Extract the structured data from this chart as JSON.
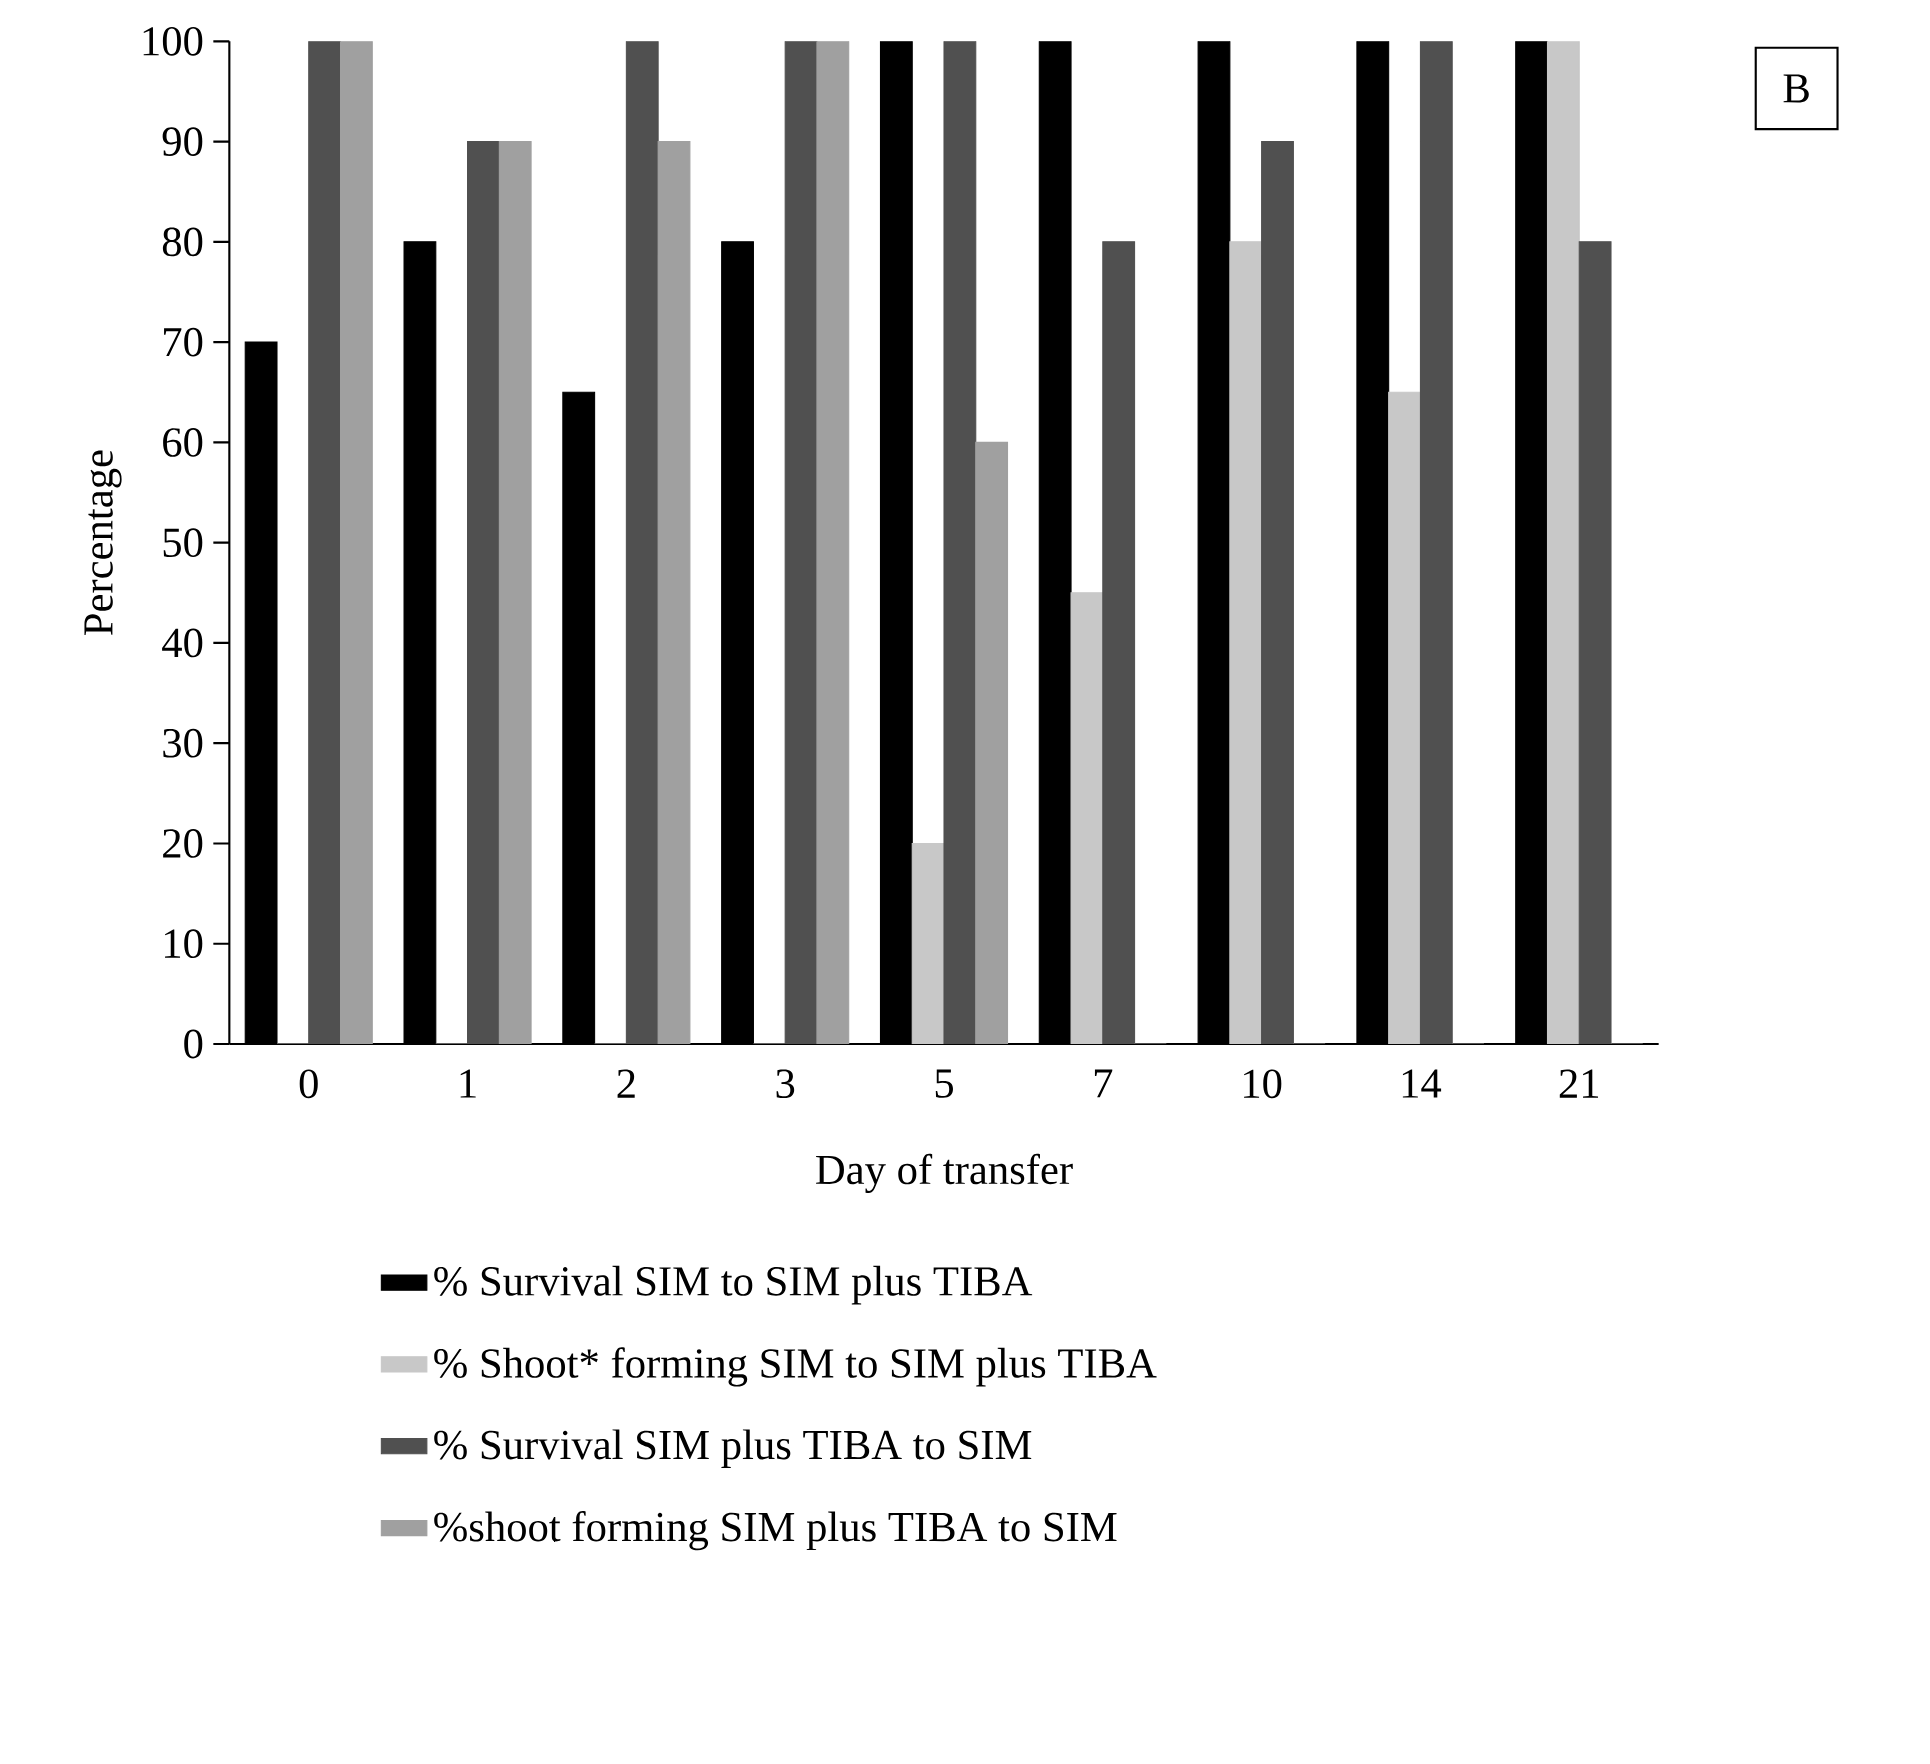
{
  "chart_data": {
    "type": "bar",
    "xlabel": "Day of transfer",
    "ylabel": "Percentage",
    "categories": [
      "0",
      "1",
      "2",
      "3",
      "5",
      "7",
      "10",
      "14",
      "21"
    ],
    "series": [
      {
        "name": "% Survival  SIM to SIM plus TIBA",
        "color": "#000000",
        "values": [
          70,
          80,
          65,
          80,
          100,
          100,
          100,
          100,
          100
        ]
      },
      {
        "name": "% Shoot* forming  SIM to SIM plus TIBA",
        "color": "#c8c8c8",
        "values": [
          0,
          0,
          0,
          0,
          20,
          45,
          80,
          65,
          100
        ]
      },
      {
        "name": "% Survival  SIM plus TIBA to SIM",
        "color": "#505050",
        "values": [
          100,
          90,
          100,
          100,
          100,
          80,
          90,
          100,
          80
        ]
      },
      {
        "name": "%shoot forming SIM plus TIBA to SIM",
        "color": "#a0a0a0",
        "values": [
          100,
          90,
          90,
          100,
          60,
          0,
          0,
          0,
          0
        ]
      }
    ],
    "ylim": [
      0,
      100
    ],
    "yticks": [
      0,
      10,
      20,
      30,
      40,
      50,
      60,
      70,
      80,
      90,
      100
    ],
    "legend": "bottom",
    "grid": false,
    "annotations": [
      "B"
    ]
  }
}
